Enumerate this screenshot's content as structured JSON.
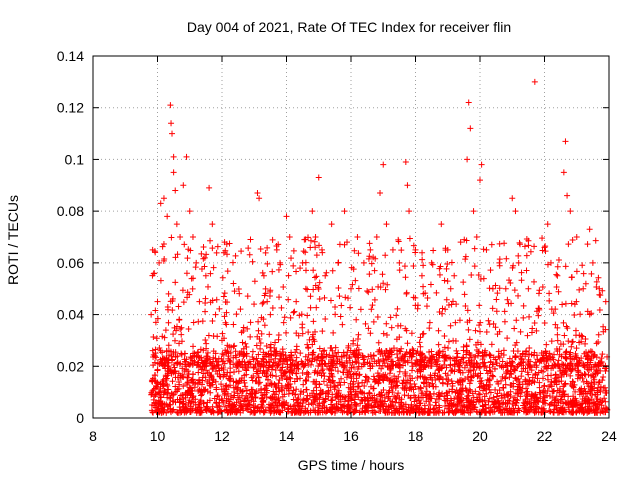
{
  "chart_data": {
    "type": "scatter",
    "title": "Day 004 of 2021, Rate Of TEC Index for receiver flin",
    "xlabel": "GPS time / hours",
    "ylabel": "ROTI / TECUs",
    "xlim": [
      8,
      24
    ],
    "ylim": [
      0,
      0.14
    ],
    "x_ticks": [
      8,
      10,
      12,
      14,
      16,
      18,
      20,
      22,
      24
    ],
    "x_tick_labels": [
      "8",
      "10",
      "12",
      "14",
      "16",
      "18",
      "20",
      "22",
      "24"
    ],
    "y_ticks": [
      0,
      0.02,
      0.04,
      0.06,
      0.08,
      0.1,
      0.12,
      0.14
    ],
    "y_tick_labels": [
      "0",
      "0.02",
      "0.04",
      "0.06",
      "0.08",
      "0.1",
      "0.12",
      "0.14"
    ],
    "grid": true,
    "marker": "+",
    "color": "#ff0000",
    "series": [
      {
        "name": "ROTI",
        "points": [
          [
            9.85,
            0.065
          ],
          [
            9.9,
            0.056
          ],
          [
            9.95,
            0.037
          ],
          [
            10.0,
            0.045
          ],
          [
            10.05,
            0.06
          ],
          [
            10.1,
            0.083
          ],
          [
            10.2,
            0.085
          ],
          [
            10.3,
            0.078
          ],
          [
            10.4,
            0.121
          ],
          [
            10.42,
            0.114
          ],
          [
            10.45,
            0.11
          ],
          [
            10.5,
            0.101
          ],
          [
            10.5,
            0.095
          ],
          [
            10.55,
            0.088
          ],
          [
            10.6,
            0.075
          ],
          [
            10.7,
            0.07
          ],
          [
            10.8,
            0.09
          ],
          [
            10.9,
            0.101
          ],
          [
            11.0,
            0.08
          ],
          [
            11.1,
            0.07
          ],
          [
            11.2,
            0.06
          ],
          [
            11.3,
            0.045
          ],
          [
            11.5,
            0.055
          ],
          [
            11.6,
            0.089
          ],
          [
            11.7,
            0.075
          ],
          [
            11.8,
            0.04
          ],
          [
            12.0,
            0.03
          ],
          [
            12.2,
            0.025
          ],
          [
            13.1,
            0.087
          ],
          [
            13.15,
            0.085
          ],
          [
            13.3,
            0.055
          ],
          [
            13.4,
            0.045
          ],
          [
            13.5,
            0.04
          ],
          [
            13.7,
            0.065
          ],
          [
            13.8,
            0.06
          ],
          [
            14.0,
            0.078
          ],
          [
            14.1,
            0.07
          ],
          [
            14.3,
            0.045
          ],
          [
            14.5,
            0.06
          ],
          [
            14.6,
            0.05
          ],
          [
            14.8,
            0.08
          ],
          [
            14.9,
            0.07
          ],
          [
            15.0,
            0.093
          ],
          [
            15.1,
            0.065
          ],
          [
            15.2,
            0.055
          ],
          [
            15.4,
            0.075
          ],
          [
            15.6,
            0.06
          ],
          [
            15.8,
            0.08
          ],
          [
            16.0,
            0.05
          ],
          [
            16.2,
            0.07
          ],
          [
            16.4,
            0.06
          ],
          [
            16.6,
            0.065
          ],
          [
            16.8,
            0.07
          ],
          [
            16.9,
            0.087
          ],
          [
            17.0,
            0.098
          ],
          [
            17.1,
            0.075
          ],
          [
            17.3,
            0.065
          ],
          [
            17.5,
            0.06
          ],
          [
            17.7,
            0.099
          ],
          [
            17.75,
            0.09
          ],
          [
            17.8,
            0.08
          ],
          [
            18.0,
            0.065
          ],
          [
            18.2,
            0.055
          ],
          [
            18.5,
            0.06
          ],
          [
            18.8,
            0.075
          ],
          [
            19.0,
            0.065
          ],
          [
            19.2,
            0.055
          ],
          [
            19.4,
            0.068
          ],
          [
            19.6,
            0.1
          ],
          [
            19.65,
            0.122
          ],
          [
            19.7,
            0.112
          ],
          [
            19.8,
            0.08
          ],
          [
            19.9,
            0.07
          ],
          [
            20.0,
            0.092
          ],
          [
            20.05,
            0.098
          ],
          [
            20.2,
            0.065
          ],
          [
            20.4,
            0.05
          ],
          [
            20.6,
            0.06
          ],
          [
            20.8,
            0.05
          ],
          [
            21.0,
            0.085
          ],
          [
            21.1,
            0.08
          ],
          [
            21.2,
            0.06
          ],
          [
            21.5,
            0.05
          ],
          [
            21.7,
            0.13
          ],
          [
            22.0,
            0.066
          ],
          [
            22.1,
            0.075
          ],
          [
            22.2,
            0.06
          ],
          [
            22.4,
            0.055
          ],
          [
            22.6,
            0.095
          ],
          [
            22.65,
            0.107
          ],
          [
            22.7,
            0.086
          ],
          [
            22.8,
            0.08
          ],
          [
            23.0,
            0.07
          ],
          [
            23.2,
            0.05
          ],
          [
            23.4,
            0.073
          ],
          [
            23.5,
            0.06
          ],
          [
            23.7,
            0.05
          ],
          [
            23.9,
            0.045
          ]
        ]
      }
    ]
  }
}
